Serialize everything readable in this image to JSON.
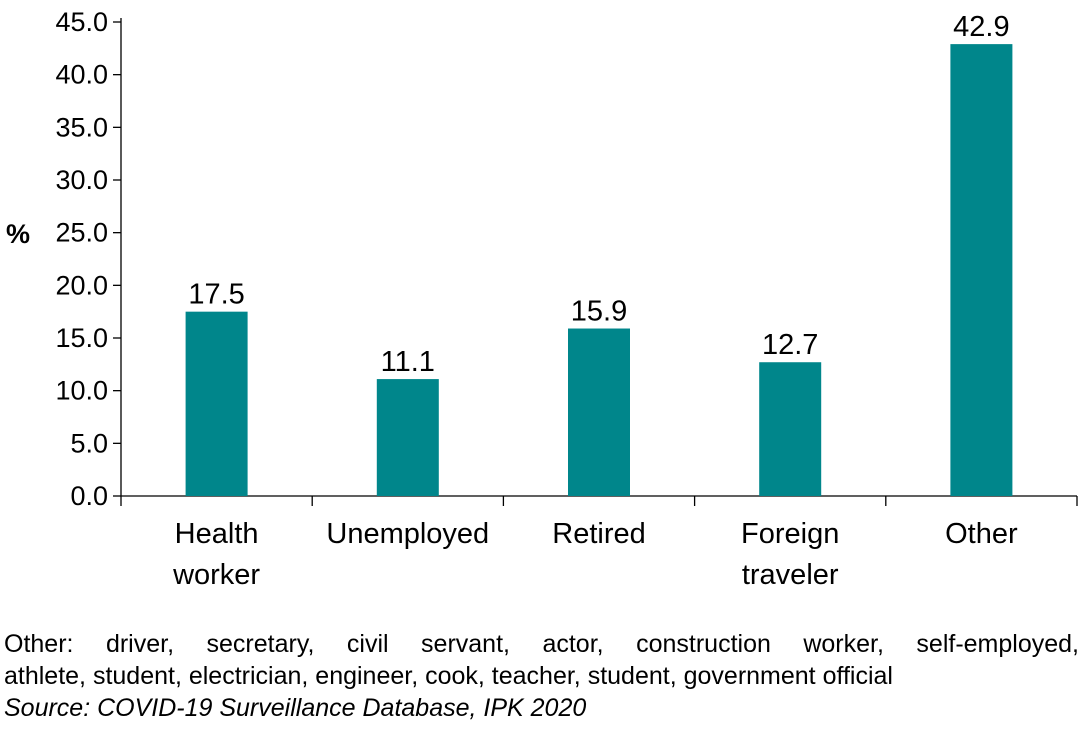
{
  "chart_data": {
    "type": "bar",
    "categories": [
      "Health\nworker",
      "Unemployed",
      "Retired",
      "Foreign\ntraveler",
      "Other"
    ],
    "values": [
      17.5,
      11.1,
      15.9,
      12.7,
      42.9
    ],
    "data_labels": [
      "17.5",
      "11.1",
      "15.9",
      "12.7",
      "42.9"
    ],
    "ylabel": "%",
    "xlabel": "",
    "title": "",
    "ylim": [
      0,
      45
    ],
    "yticks": [
      "0.0",
      "5.0",
      "10.0",
      "15.0",
      "20.0",
      "25.0",
      "30.0",
      "35.0",
      "40.0",
      "45.0"
    ],
    "grid": false,
    "bar_color": "#00868B"
  },
  "notes": {
    "other_line1": "Other: driver, secretary, civil servant, actor, construction worker, self-employed,",
    "other_line2": "athlete, student, electrician, engineer, cook, teacher, student, government official",
    "source": "Source: COVID-19 Surveillance Database, IPK 2020"
  }
}
